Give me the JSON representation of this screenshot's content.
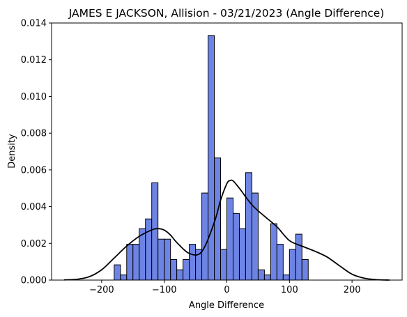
{
  "chart_data": {
    "type": "bar",
    "title": "JAMES E JACKSON, Allision - 03/21/2023 (Angle Difference)",
    "xlabel": "Angle Difference",
    "ylabel": "Density",
    "xlim": [
      -280,
      280
    ],
    "ylim": [
      0,
      0.014
    ],
    "xticks": [
      -200,
      -100,
      0,
      100,
      200
    ],
    "xtick_labels": [
      "−200",
      "−100",
      "0",
      "100",
      "200"
    ],
    "yticks": [
      0,
      0.002,
      0.004,
      0.006,
      0.008,
      0.01,
      0.012,
      0.014
    ],
    "ytick_labels": [
      "0.000",
      "0.002",
      "0.004",
      "0.006",
      "0.008",
      "0.010",
      "0.012",
      "0.014"
    ],
    "grid": false,
    "bin_start": -180,
    "bin_width": 10,
    "values": [
      0.00083,
      0.00028,
      0.00195,
      0.00195,
      0.0028,
      0.00333,
      0.0053,
      0.00223,
      0.00223,
      0.00112,
      0.00056,
      0.00112,
      0.00195,
      0.00167,
      0.00474,
      0.01332,
      0.00665,
      0.00167,
      0.00447,
      0.00363,
      0.0028,
      0.00585,
      0.00474,
      0.00056,
      0.00028,
      0.00307,
      0.00195,
      0.00028,
      0.00167,
      0.0025,
      0.00112
    ],
    "kde": {
      "x": [
        -260,
        -240,
        -220,
        -200,
        -180,
        -160,
        -140,
        -120,
        -110,
        -100,
        -90,
        -80,
        -60,
        -40,
        -20,
        -10,
        0,
        5,
        10,
        20,
        40,
        60,
        80,
        100,
        120,
        140,
        160,
        180,
        200,
        220,
        240,
        260
      ],
      "y": [
        1e-05,
        4e-05,
        0.00018,
        0.00056,
        0.0012,
        0.00185,
        0.00238,
        0.00273,
        0.0028,
        0.00272,
        0.00245,
        0.00205,
        0.00145,
        0.00155,
        0.00315,
        0.00435,
        0.00525,
        0.00542,
        0.0054,
        0.005,
        0.0041,
        0.00348,
        0.0029,
        0.00215,
        0.00185,
        0.00158,
        0.00126,
        0.00078,
        0.00032,
        0.0001,
        2e-05,
        0.0
      ],
      "color": "#000000"
    },
    "bar_color": "#6d84e4",
    "bar_edge_color": "#000000"
  }
}
